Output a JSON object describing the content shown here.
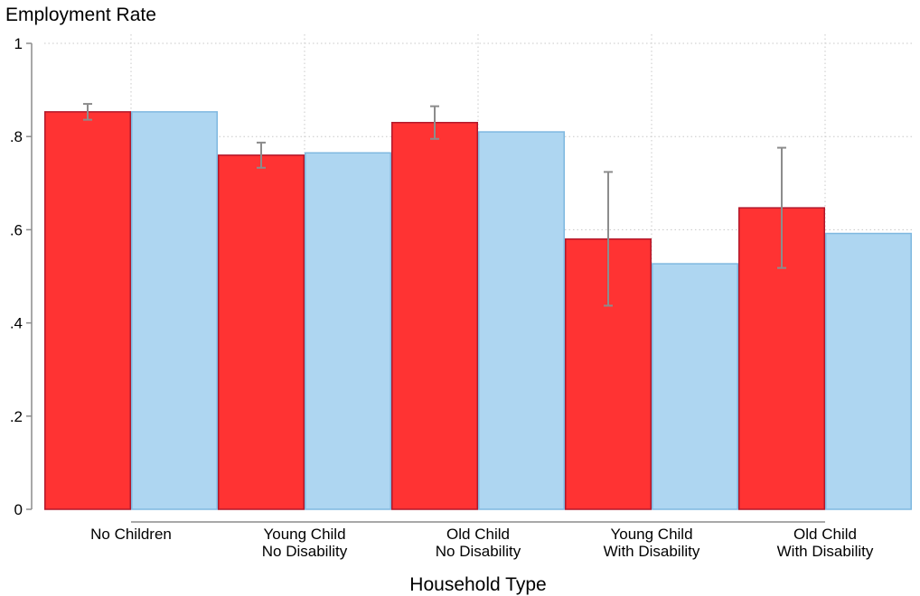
{
  "chart_data": {
    "type": "bar",
    "title": "",
    "ylabel": "Employment Rate",
    "xlabel": "Household Type",
    "ylim": [
      0,
      1
    ],
    "yticks": [
      {
        "value": 0,
        "label": "0"
      },
      {
        "value": 0.2,
        "label": ".2"
      },
      {
        "value": 0.4,
        "label": ".4"
      },
      {
        "value": 0.6,
        "label": ".6"
      },
      {
        "value": 0.8,
        "label": ".8"
      },
      {
        "value": 1,
        "label": "1"
      }
    ],
    "categories": [
      [
        "No Children"
      ],
      [
        "Young Child",
        "No Disability"
      ],
      [
        "Old Child",
        "No Disability"
      ],
      [
        "Young Child",
        "With Disability"
      ],
      [
        "Old Child",
        "With Disability"
      ]
    ],
    "grid": true,
    "series": [
      {
        "color": "#ff3333",
        "edge": "#b2182b",
        "values": [
          0.853,
          0.76,
          0.83,
          0.58,
          0.647
        ],
        "error_low": [
          0.836,
          0.733,
          0.795,
          0.437,
          0.518
        ],
        "error_high": [
          0.87,
          0.787,
          0.865,
          0.724,
          0.776
        ]
      },
      {
        "color": "#aed6f1",
        "edge": "#7fb8e0",
        "values": [
          0.853,
          0.765,
          0.81,
          0.527,
          0.592
        ]
      }
    ]
  }
}
